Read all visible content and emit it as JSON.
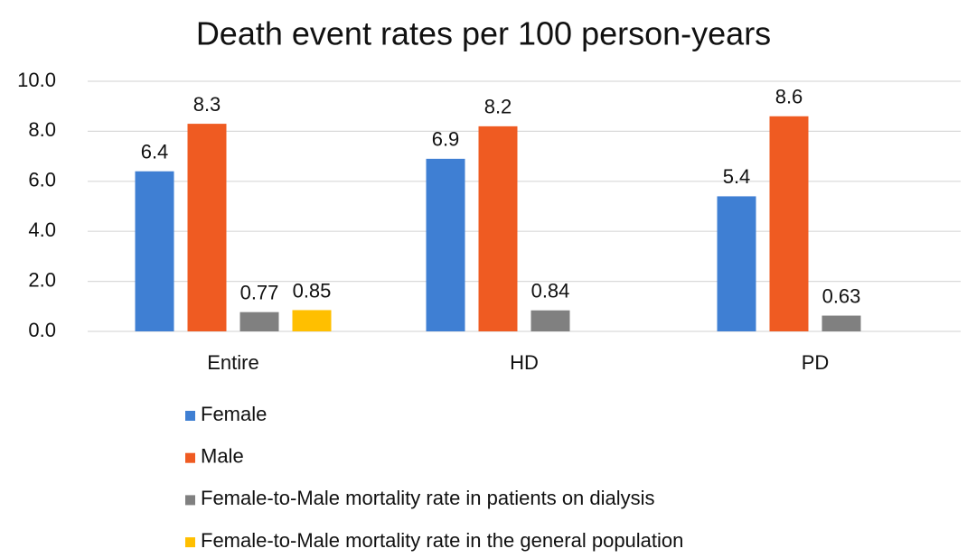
{
  "chart_data": {
    "type": "bar",
    "title": "Death event rates per 100 person-years",
    "categories": [
      "Entire",
      "HD",
      "PD"
    ],
    "series": [
      {
        "name": "Female",
        "color": "#3f7fd3",
        "values": [
          6.4,
          6.9,
          5.4
        ]
      },
      {
        "name": "Male",
        "color": "#ef5b22",
        "values": [
          8.3,
          8.2,
          8.6
        ]
      },
      {
        "name": "Female-to-Male mortality rate in patients on dialysis",
        "color": "#808080",
        "values": [
          0.77,
          0.84,
          0.63
        ]
      },
      {
        "name": "Female-to-Male mortality rate in the general population",
        "color": "#ffbf00",
        "values": [
          0.85,
          null,
          null
        ]
      }
    ],
    "ylim": [
      0,
      10
    ],
    "yticks": [
      {
        "value": 0,
        "label": "0.0"
      },
      {
        "value": 2,
        "label": "2.0"
      },
      {
        "value": 4,
        "label": "4.0"
      },
      {
        "value": 6,
        "label": "6.0"
      },
      {
        "value": 8,
        "label": "8.0"
      },
      {
        "value": 10,
        "label": "10.0"
      }
    ],
    "grid": true,
    "legend": "bottom"
  }
}
